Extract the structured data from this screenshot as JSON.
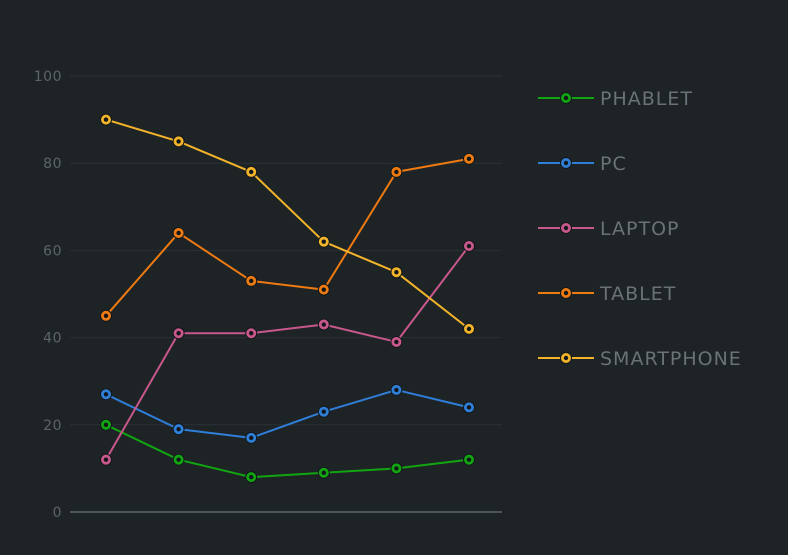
{
  "chart_data": {
    "type": "line",
    "x": [
      1,
      2,
      3,
      4,
      5,
      6
    ],
    "ylim": [
      0,
      100
    ],
    "yticks": [
      0,
      20,
      40,
      60,
      80,
      100
    ],
    "grid": true,
    "legend_position": "right",
    "series": [
      {
        "name": "PHABLET",
        "color": "#12a512",
        "values": [
          20,
          12,
          8,
          9,
          10,
          12
        ]
      },
      {
        "name": "PC",
        "color": "#2f7ed8",
        "values": [
          27,
          19,
          17,
          23,
          28,
          24
        ]
      },
      {
        "name": "LAPTOP",
        "color": "#c8578c",
        "values": [
          12,
          41,
          41,
          43,
          39,
          61
        ]
      },
      {
        "name": "TABLET",
        "color": "#ee7a12",
        "values": [
          45,
          64,
          53,
          51,
          78,
          81
        ]
      },
      {
        "name": "SMARTPHONE",
        "color": "#f3b42b",
        "values": [
          90,
          85,
          78,
          62,
          55,
          42
        ]
      }
    ]
  },
  "colors": {
    "background": "#1e2326",
    "grid": "#2b3135",
    "axis": "#4d5458",
    "marker_outline": "#12171a"
  }
}
